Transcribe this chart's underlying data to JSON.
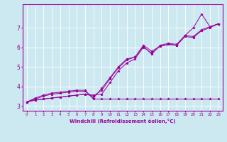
{
  "title": "",
  "xlabel": "Windchill (Refroidissement éolien,°C)",
  "bg_color": "#cce8f0",
  "line_color": "#990099",
  "marker": "*",
  "xlim": [
    -0.5,
    23.5
  ],
  "ylim": [
    2.75,
    8.2
  ],
  "xticks": [
    0,
    1,
    2,
    3,
    4,
    5,
    6,
    7,
    8,
    9,
    10,
    11,
    12,
    13,
    14,
    15,
    16,
    17,
    18,
    19,
    20,
    21,
    22,
    23
  ],
  "yticks": [
    3,
    4,
    5,
    6,
    7
  ],
  "series": [
    [
      3.2,
      3.3,
      3.35,
      3.4,
      3.45,
      3.5,
      3.55,
      3.6,
      3.55,
      3.6,
      4.2,
      4.8,
      5.2,
      5.4,
      6.0,
      5.7,
      6.05,
      6.15,
      6.1,
      6.55,
      6.5,
      6.85,
      7.0,
      7.2
    ],
    [
      3.2,
      3.3,
      3.35,
      3.4,
      3.45,
      3.5,
      3.55,
      3.6,
      3.5,
      3.8,
      4.4,
      4.95,
      5.35,
      5.5,
      6.05,
      5.65,
      6.1,
      6.2,
      6.15,
      6.6,
      6.55,
      6.9,
      7.05,
      7.2
    ],
    [
      3.2,
      3.35,
      3.5,
      3.6,
      3.65,
      3.7,
      3.75,
      3.75,
      3.4,
      3.9,
      4.45,
      5.0,
      5.4,
      5.5,
      6.1,
      5.8,
      6.05,
      6.15,
      6.1,
      6.6,
      7.0,
      7.7,
      7.05,
      7.2
    ],
    [
      3.2,
      3.4,
      3.55,
      3.65,
      3.7,
      3.75,
      3.8,
      3.8,
      3.35,
      3.35,
      3.35,
      3.35,
      3.35,
      3.35,
      3.35,
      3.35,
      3.35,
      3.35,
      3.35,
      3.35,
      3.35,
      3.35,
      3.35,
      3.35
    ]
  ]
}
